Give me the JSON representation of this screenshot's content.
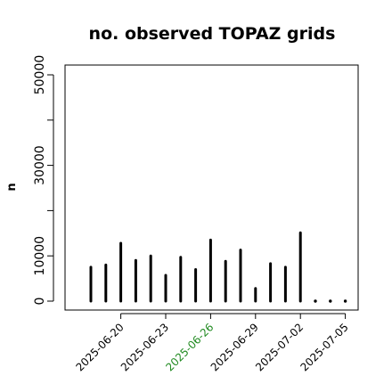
{
  "chart_data": {
    "type": "bar",
    "title": "no. observed TOPAZ grids",
    "ylabel": "n",
    "xlabel": "",
    "ylim": [
      0,
      52000
    ],
    "yticks": [
      0,
      10000,
      30000,
      50000
    ],
    "yticks_minor": [
      20000,
      40000
    ],
    "x": [
      "2025-06-18",
      "2025-06-19",
      "2025-06-20",
      "2025-06-21",
      "2025-06-22",
      "2025-06-23",
      "2025-06-24",
      "2025-06-25",
      "2025-06-26",
      "2025-06-27",
      "2025-06-28",
      "2025-06-29",
      "2025-06-30",
      "2025-07-01",
      "2025-07-02",
      "2025-07-03",
      "2025-07-04",
      "2025-07-05"
    ],
    "values": [
      7500,
      8000,
      12800,
      9000,
      10000,
      5700,
      9700,
      7000,
      13500,
      8800,
      11300,
      2800,
      8300,
      7500,
      15100,
      0,
      0,
      0
    ],
    "xtick_labels": [
      "2025-06-20",
      "2025-06-23",
      "2025-06-26",
      "2025-06-29",
      "2025-07-02",
      "2025-07-05"
    ],
    "xtick_dates": [
      "2025-06-20",
      "2025-06-23",
      "2025-06-26",
      "2025-06-29",
      "2025-07-02",
      "2025-07-05"
    ],
    "highlight_label": "2025-06-26",
    "colors": {
      "bar": "#000000",
      "highlight": "#228B22",
      "tick": "#000000"
    },
    "grid": false,
    "legend": "none"
  }
}
